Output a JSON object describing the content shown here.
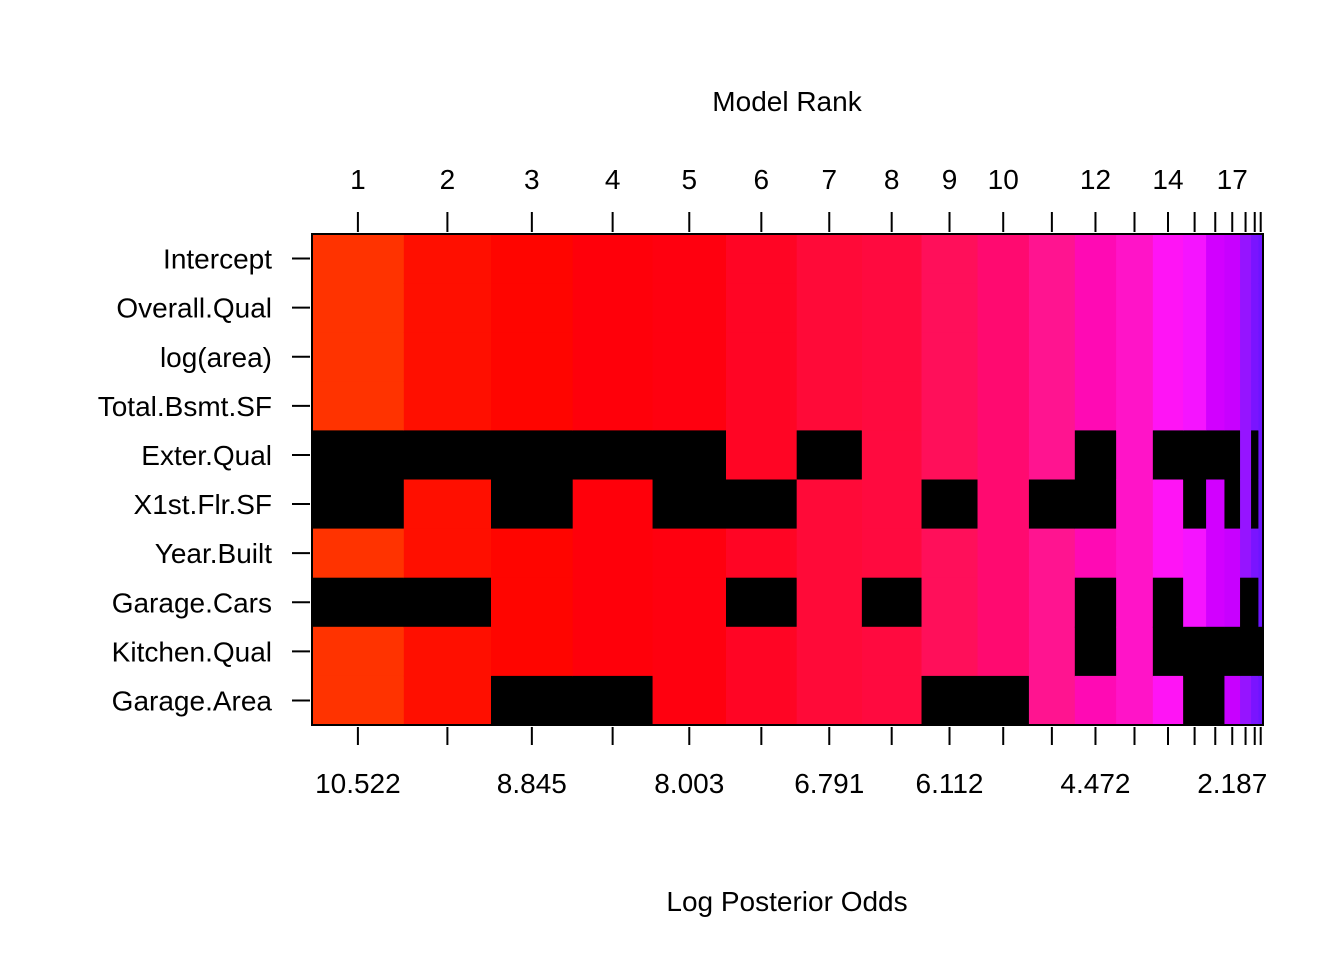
{
  "chart_data": {
    "type": "heatmap",
    "title": "",
    "top_axis_label": "Model Rank",
    "xlabel": "Log Posterior Odds",
    "ylabel": "",
    "top_tick_labels": [
      "1",
      "2",
      "3",
      "4",
      "5",
      "6",
      "7",
      "8",
      "9",
      "10",
      "12",
      "14",
      "17"
    ],
    "bottom_tick_labels": [
      "10.522",
      "8.845",
      "8.003",
      "6.791",
      "6.112",
      "4.472",
      "2.187"
    ],
    "variables": [
      "Intercept",
      "Overall.Qual",
      "log(area)",
      "Total.Bsmt.SF",
      "Exter.Qual",
      "X1st.Flr.SF",
      "Year.Built",
      "Garage.Cars",
      "Kitchen.Qual",
      "Garage.Area"
    ],
    "grid": false,
    "legend": "none",
    "exclusion_color": "#000000",
    "models": [
      {
        "rank": 1,
        "log_posterior_odds": 10.522,
        "color": "#FF3300",
        "width": 1.0,
        "excluded": [
          "Exter.Qual",
          "X1st.Flr.SF",
          "Garage.Cars"
        ]
      },
      {
        "rank": 2,
        "log_posterior_odds": 9.5,
        "color": "#FF0F00",
        "width": 0.95,
        "excluded": [
          "Exter.Qual",
          "Garage.Cars"
        ]
      },
      {
        "rank": 3,
        "log_posterior_odds": 8.845,
        "color": "#FF0500",
        "width": 0.89,
        "excluded": [
          "Exter.Qual",
          "X1st.Flr.SF",
          "Garage.Area"
        ]
      },
      {
        "rank": 4,
        "log_posterior_odds": 8.4,
        "color": "#FF000A",
        "width": 0.87,
        "excluded": [
          "Exter.Qual",
          "Garage.Area"
        ]
      },
      {
        "rank": 5,
        "log_posterior_odds": 8.003,
        "color": "#FF000F",
        "width": 0.8,
        "excluded": [
          "Exter.Qual",
          "X1st.Flr.SF"
        ]
      },
      {
        "rank": 6,
        "log_posterior_odds": 7.4,
        "color": "#FF0524",
        "width": 0.77,
        "excluded": [
          "X1st.Flr.SF",
          "Garage.Cars"
        ]
      },
      {
        "rank": 7,
        "log_posterior_odds": 6.791,
        "color": "#FF0A38",
        "width": 0.71,
        "excluded": [
          "Exter.Qual"
        ]
      },
      {
        "rank": 8,
        "log_posterior_odds": 6.45,
        "color": "#FF0A3F",
        "width": 0.65,
        "excluded": [
          "Garage.Cars"
        ]
      },
      {
        "rank": 9,
        "log_posterior_odds": 6.112,
        "color": "#FF0F5A",
        "width": 0.61,
        "excluded": [
          "X1st.Flr.SF",
          "Garage.Area"
        ]
      },
      {
        "rank": 10,
        "log_posterior_odds": 5.6,
        "color": "#FF0A70",
        "width": 0.56,
        "excluded": [
          "Garage.Area"
        ]
      },
      {
        "rank": 11,
        "log_posterior_odds": 5.0,
        "color": "#FF1490",
        "width": 0.5,
        "excluded": [
          "X1st.Flr.SF"
        ]
      },
      {
        "rank": 12,
        "log_posterior_odds": 4.472,
        "color": "#FF0AB4",
        "width": 0.45,
        "excluded": [
          "Exter.Qual",
          "X1st.Flr.SF",
          "Garage.Cars",
          "Kitchen.Qual"
        ]
      },
      {
        "rank": 13,
        "log_posterior_odds": 3.9,
        "color": "#FF14C8",
        "width": 0.4,
        "excluded": []
      },
      {
        "rank": 14,
        "log_posterior_odds": 3.3,
        "color": "#FF14F5",
        "width": 0.33,
        "excluded": [
          "Exter.Qual",
          "Garage.Cars",
          "Kitchen.Qual"
        ]
      },
      {
        "rank": 15,
        "log_posterior_odds": 2.8,
        "color": "#F514FF",
        "width": 0.25,
        "excluded": [
          "Exter.Qual",
          "X1st.Flr.SF",
          "Kitchen.Qual",
          "Garage.Area"
        ]
      },
      {
        "rank": 16,
        "log_posterior_odds": 2.4,
        "color": "#D200FF",
        "width": 0.2,
        "excluded": [
          "Exter.Qual",
          "Kitchen.Qual",
          "Garage.Area"
        ]
      },
      {
        "rank": 17,
        "log_posterior_odds": 2.187,
        "color": "#C800FF",
        "width": 0.17,
        "excluded": [
          "Exter.Qual",
          "X1st.Flr.SF",
          "Kitchen.Qual"
        ]
      },
      {
        "rank": 18,
        "log_posterior_odds": 1.95,
        "color": "#9614FF",
        "width": 0.12,
        "excluded": [
          "Garage.Cars",
          "Kitchen.Qual"
        ]
      },
      {
        "rank": 19,
        "log_posterior_odds": 1.9,
        "color": "#7A14FF",
        "width": 0.08,
        "excluded": [
          "Exter.Qual",
          "X1st.Flr.SF",
          "Garage.Cars",
          "Kitchen.Qual"
        ]
      },
      {
        "rank": 20,
        "log_posterior_odds": 1.85,
        "color": "#6E14FF",
        "width": 0.05,
        "excluded": [
          "Kitchen.Qual"
        ]
      }
    ]
  }
}
